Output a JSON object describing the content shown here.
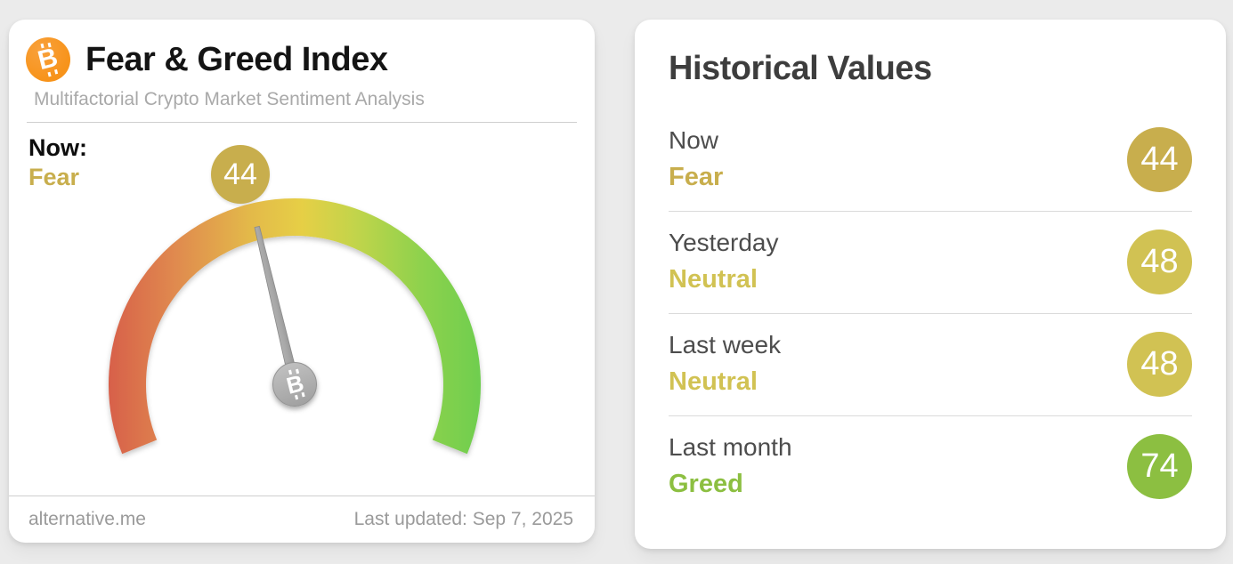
{
  "fear_greed_card": {
    "title": "Fear & Greed Index",
    "subtitle": "Multifactorial Crypto Market Sentiment Analysis",
    "now_label": "Now:",
    "now_classification": "Fear",
    "value": "44",
    "footer": {
      "site": "alternative.me",
      "last_updated": "Last updated: Sep 7, 2025"
    },
    "colors": {
      "logo": "#f7931a",
      "classification": "#c8ae4d",
      "badge": "#c8ae4d"
    }
  },
  "historical_card": {
    "title": "Historical Values",
    "rows": [
      {
        "label": "Now",
        "classification": "Fear",
        "value": "44",
        "color": "#c8ae4d"
      },
      {
        "label": "Yesterday",
        "classification": "Neutral",
        "value": "48",
        "color": "#d1c253"
      },
      {
        "label": "Last week",
        "classification": "Neutral",
        "value": "48",
        "color": "#d1c253"
      },
      {
        "label": "Last month",
        "classification": "Greed",
        "value": "74",
        "color": "#8cbf41"
      }
    ]
  },
  "chart_data": {
    "type": "gauge",
    "title": "Fear & Greed Index",
    "value": 44,
    "classification": "Fear",
    "range": [
      0,
      100
    ],
    "gauge_span_degrees": 224,
    "scale_colors": [
      "#d7604a",
      "#e08a4f",
      "#e3b94a",
      "#e6cf45",
      "#c3d44b",
      "#8ed24d",
      "#6fce4f"
    ],
    "scale_meaning": "0 extreme fear (red) to 100 extreme greed (green)",
    "historical": [
      {
        "period": "Now",
        "value": 44,
        "classification": "Fear"
      },
      {
        "period": "Yesterday",
        "value": 48,
        "classification": "Neutral"
      },
      {
        "period": "Last week",
        "value": 48,
        "classification": "Neutral"
      },
      {
        "period": "Last month",
        "value": 74,
        "classification": "Greed"
      }
    ]
  }
}
